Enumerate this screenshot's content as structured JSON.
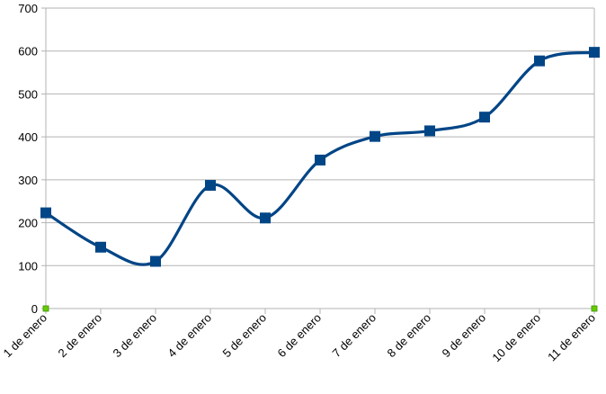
{
  "chart_data": {
    "type": "line",
    "title": "",
    "xlabel": "",
    "ylabel": "",
    "categories": [
      "1 de enero",
      "2 de enero",
      "3 de enero",
      "4 de enero",
      "5 de enero",
      "6 de enero",
      "7 de enero",
      "8 de enero",
      "9 de enero",
      "10 de enero",
      "11 de enero"
    ],
    "series": [
      {
        "values": [
          223,
          143,
          110,
          287,
          211,
          346,
          401,
          414,
          446,
          577,
          597
        ]
      }
    ],
    "ylim": [
      0,
      700
    ],
    "yticks": [
      "0",
      "100",
      "200",
      "300",
      "400",
      "500",
      "600",
      "700"
    ],
    "grid": true,
    "legend": "none",
    "smooth": true,
    "colors": {
      "series": "#004586",
      "grid": "#b3b3b3",
      "axis": "#b3b3b3",
      "axis_marker": "#66cc00"
    }
  }
}
